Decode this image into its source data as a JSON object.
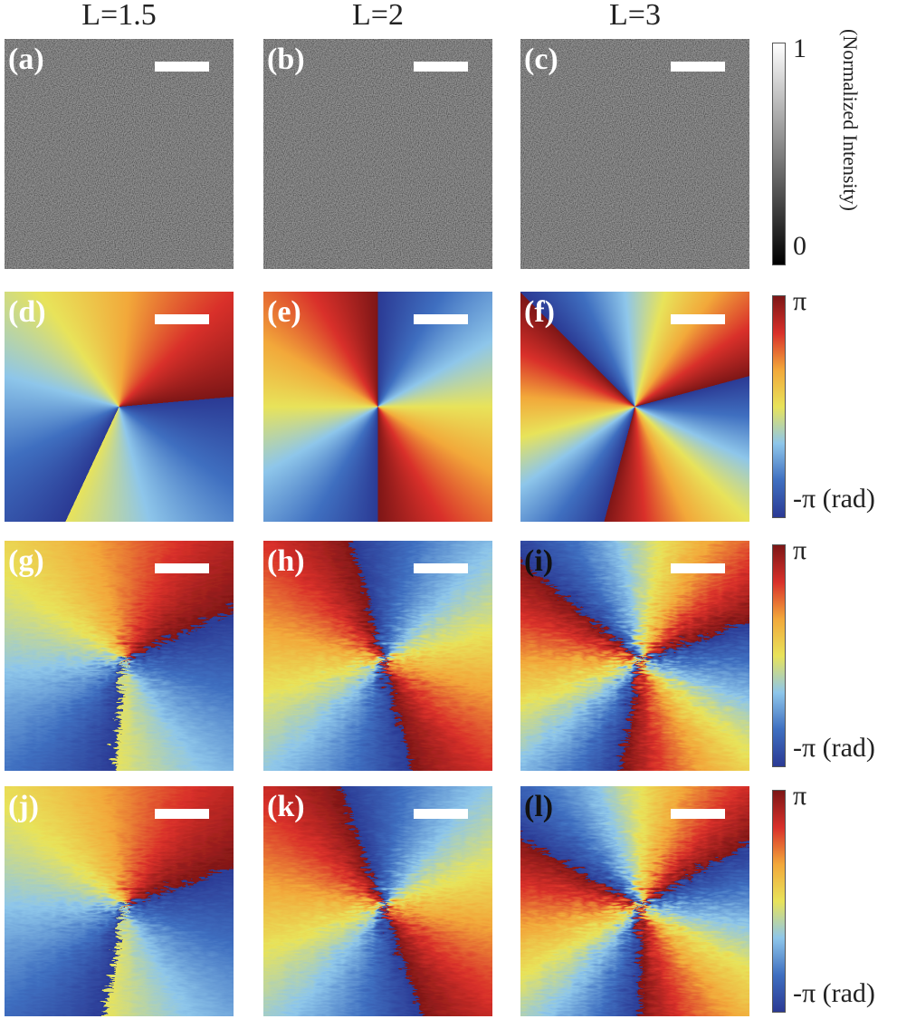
{
  "columns": [
    "L=1.5",
    "L=2",
    "L=3"
  ],
  "panels": [
    [
      "(a)",
      "(b)",
      "(c)"
    ],
    [
      "(d)",
      "(e)",
      "(f)"
    ],
    [
      "(g)",
      "(h)",
      "(i)"
    ],
    [
      "(j)",
      "(k)",
      "(l)"
    ]
  ],
  "colorbars": [
    {
      "max": "1",
      "min": "0",
      "title": "(Normalized Intensity)"
    },
    {
      "max": "π",
      "min": "-π (rad)"
    },
    {
      "max": "π",
      "min": "-π (rad)"
    },
    {
      "max": "π",
      "min": "-π (rad)"
    }
  ]
}
